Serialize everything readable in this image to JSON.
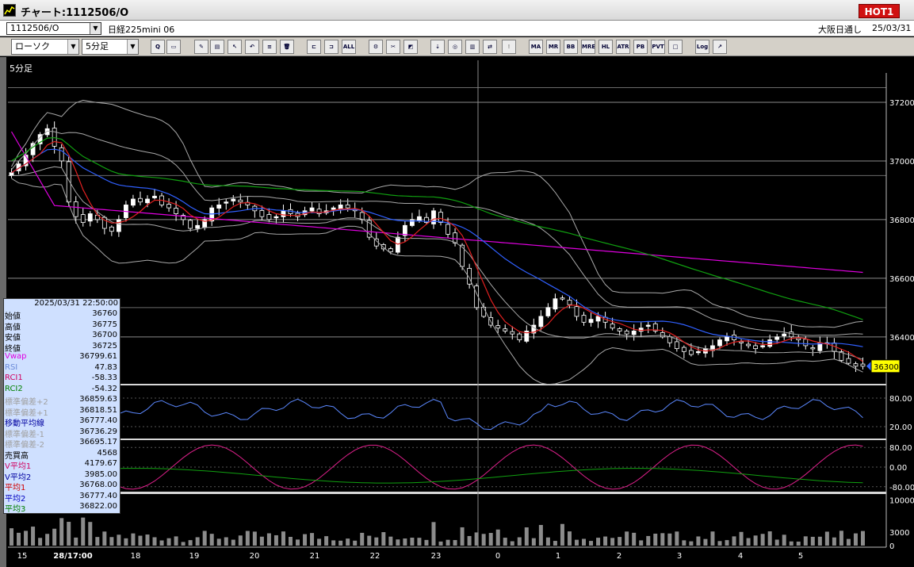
{
  "window": {
    "title": "チャート:1112506/O",
    "hot_badge": "HOT1"
  },
  "info": {
    "symbol_code": "1112506/O",
    "symbol_name": "日経225mini 06",
    "market": "大阪日通し",
    "date": "25/03/31"
  },
  "toolbar": {
    "chart_type": "ローソク",
    "period": "5分足",
    "buttons": [
      {
        "name": "zoom-icon",
        "text": "Q"
      },
      {
        "name": "window-icon",
        "text": "▭"
      },
      {
        "name": "pen-icon",
        "text": "✎"
      },
      {
        "name": "color-icon",
        "text": "▤"
      },
      {
        "name": "cursor-icon",
        "text": "↖"
      },
      {
        "name": "undo-icon",
        "text": "↶"
      },
      {
        "name": "list-icon",
        "text": "≡"
      },
      {
        "name": "trash-icon",
        "text": "🗑"
      },
      {
        "name": "candle-icon",
        "text": "⊏"
      },
      {
        "name": "candle-box-icon",
        "text": "⊐"
      },
      {
        "name": "all-icon",
        "text": "ALL"
      },
      {
        "name": "tools-icon",
        "text": "⚙"
      },
      {
        "name": "wrench-icon",
        "text": "✂"
      },
      {
        "name": "palette-icon",
        "text": "◩"
      },
      {
        "name": "import-icon",
        "text": "⇣"
      },
      {
        "name": "search-chart-icon",
        "text": "◎"
      },
      {
        "name": "bar-chart-icon",
        "text": "▥"
      },
      {
        "name": "compare-icon",
        "text": "⇄"
      },
      {
        "name": "disabled-icon",
        "text": "!"
      },
      {
        "name": "ma-icon",
        "text": "MA"
      },
      {
        "name": "mr-icon",
        "text": "MR"
      },
      {
        "name": "bb-icon",
        "text": "BB"
      },
      {
        "name": "mre-icon",
        "text": "MRE"
      },
      {
        "name": "hl-icon",
        "text": "HL"
      },
      {
        "name": "atr-icon",
        "text": "ATR"
      },
      {
        "name": "pb-icon",
        "text": "PB"
      },
      {
        "name": "pvt-icon",
        "text": "PVT"
      },
      {
        "name": "frame-icon",
        "text": "□"
      },
      {
        "name": "log-icon",
        "text": "Log"
      },
      {
        "name": "export-icon",
        "text": "↗"
      }
    ]
  },
  "chart_meta": {
    "period_label": "5分足",
    "current_price_label": "36300"
  },
  "data_panel": {
    "datetime": "2025/03/31  22:50:00",
    "rows": [
      {
        "label": "始値",
        "value": "36760",
        "color": "#000000"
      },
      {
        "label": "高値",
        "value": "36775",
        "color": "#000000"
      },
      {
        "label": "安値",
        "value": "36700",
        "color": "#000000"
      },
      {
        "label": "終値",
        "value": "36725",
        "color": "#000000"
      },
      {
        "label": "Vwap",
        "value": "36799.61",
        "color": "#e000e0"
      },
      {
        "label": "RSI",
        "value": "47.83",
        "color": "#6a8ad8"
      },
      {
        "label": "RCI1",
        "value": "-58.33",
        "color": "#d00060"
      },
      {
        "label": "RCI2",
        "value": "-54.32",
        "color": "#008000"
      },
      {
        "label": "標準偏差+2",
        "value": "36859.63",
        "color": "#a0a0a0"
      },
      {
        "label": "標準偏差+1",
        "value": "36818.51",
        "color": "#a0a0a0"
      },
      {
        "label": "移動平均線",
        "value": "36777.40",
        "color": "#0000a0"
      },
      {
        "label": "標準偏差-1",
        "value": "36736.29",
        "color": "#a0a0a0"
      },
      {
        "label": "標準偏差-2",
        "value": "36695.17",
        "color": "#a0a0a0"
      },
      {
        "label": "売買高",
        "value": "4568",
        "color": "#000000"
      },
      {
        "label": "V平均1",
        "value": "4179.67",
        "color": "#d00060"
      },
      {
        "label": "V平均2",
        "value": "3985.00",
        "color": "#0000a0"
      },
      {
        "label": "平均1",
        "value": "36768.00",
        "color": "#d00000"
      },
      {
        "label": "平均2",
        "value": "36777.40",
        "color": "#0000c0"
      },
      {
        "label": "平均3",
        "value": "36822.00",
        "color": "#008000"
      }
    ]
  },
  "chart_data": [
    {
      "type": "candlestick",
      "title": "",
      "y_ticks": [
        37200,
        37000,
        36800,
        36600,
        36400
      ],
      "ylim": [
        36240,
        37300
      ],
      "current_price": 36300,
      "x_tick_labels": [
        "15",
        "28/17:00",
        "18",
        "19",
        "20",
        "21",
        "22",
        "23",
        "0",
        "1",
        "2",
        "3",
        "4",
        "5"
      ],
      "close_series": [
        36960,
        36990,
        37020,
        37060,
        37090,
        37110,
        37050,
        37000,
        36860,
        36810,
        36790,
        36820,
        36800,
        36770,
        36760,
        36800,
        36850,
        36870,
        36860,
        36870,
        36880,
        36850,
        36840,
        36820,
        36800,
        36770,
        36780,
        36800,
        36840,
        36850,
        36860,
        36870,
        36860,
        36850,
        36830,
        36810,
        36800,
        36810,
        36830,
        36820,
        36810,
        36830,
        36840,
        36820,
        36830,
        36840,
        36850,
        36840,
        36830,
        36800,
        36740,
        36710,
        36700,
        36690,
        36740,
        36780,
        36800,
        36810,
        36790,
        36830,
        36790,
        36750,
        36720,
        36640,
        36580,
        36500,
        36470,
        36440,
        36430,
        36420,
        36410,
        36390,
        36420,
        36440,
        36470,
        36500,
        36530,
        36530,
        36510,
        36470,
        36450,
        36460,
        36470,
        36450,
        36430,
        36420,
        36410,
        36420,
        36430,
        36440,
        36420,
        36400,
        36380,
        36360,
        36350,
        36340,
        36350,
        36360,
        36370,
        36390,
        36400,
        36390,
        36380,
        36370,
        36360,
        36370,
        36390,
        36400,
        36410,
        36400,
        36390,
        36370,
        36360,
        36380,
        36380,
        36350,
        36320,
        36310,
        36300,
        36300
      ],
      "indicators": [
        "VWAP",
        "移動平均線",
        "標準偏差±1",
        "標準偏差±2",
        "平均1",
        "平均3"
      ]
    },
    {
      "type": "line",
      "title": "",
      "y_ticks": [
        80.0,
        20.0
      ],
      "ylim": [
        0,
        100
      ],
      "series_name": "RSI",
      "color": "#5b88ff"
    },
    {
      "type": "line",
      "title": "",
      "y_ticks": [
        80.0,
        0.0,
        -80.0
      ],
      "ylim": [
        -100,
        100
      ],
      "series_names": [
        "RCI1",
        "RCI2"
      ],
      "colors": [
        "#e0208c",
        "#10a010"
      ]
    },
    {
      "type": "bar",
      "title": "",
      "y_ticks": [
        10000,
        3000,
        0
      ],
      "ylim": [
        0,
        11000
      ],
      "series_name": "売買高"
    }
  ],
  "colors": {
    "bull": "#ffffff",
    "bear": "#000000",
    "vwap": "#e000e0",
    "ma": "#3060ff",
    "ma_long": "#10a010",
    "ma_short": "#e02020",
    "band": "#b0b0b0",
    "price_tag": "#ffff00"
  }
}
